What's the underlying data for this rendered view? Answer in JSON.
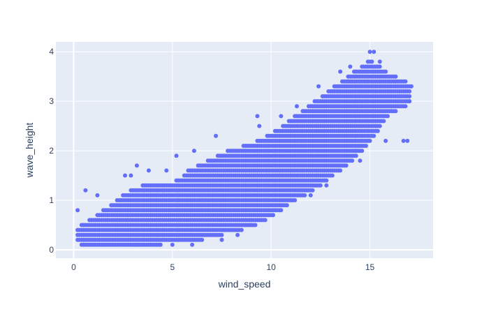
{
  "chart_data": {
    "type": "scatter",
    "title": "",
    "xlabel": "wind_speed",
    "ylabel": "wave_height",
    "xlim": [
      -0.9,
      18.2
    ],
    "ylim": [
      -0.17,
      4.2
    ],
    "xticks": [
      0,
      5,
      10,
      15
    ],
    "yticks": [
      0,
      1,
      2,
      3,
      4
    ],
    "grid": true,
    "legend": "none",
    "colors": {
      "marker": "#636efa",
      "plot_background": "#e5ecf6",
      "grid": "#ffffff",
      "text": "#2a3f5f"
    },
    "series": [
      {
        "wave_height_range_by_wind_speed": [
          {
            "wind_speed": 0.2,
            "wave_height_min": 0.2,
            "wave_height_max": 0.4
          },
          {
            "wind_speed": 0.5,
            "wave_height_min": 0.1,
            "wave_height_max": 0.5
          },
          {
            "wind_speed": 1,
            "wave_height_min": 0.1,
            "wave_height_max": 0.6
          },
          {
            "wind_speed": 2,
            "wave_height_min": 0.1,
            "wave_height_max": 0.9
          },
          {
            "wind_speed": 3,
            "wave_height_min": 0.1,
            "wave_height_max": 1.2
          },
          {
            "wind_speed": 4,
            "wave_height_min": 0.1,
            "wave_height_max": 1.3
          },
          {
            "wind_speed": 5,
            "wave_height_min": 0.2,
            "wave_height_max": 1.3
          },
          {
            "wind_speed": 6,
            "wave_height_min": 0.2,
            "wave_height_max": 1.6
          },
          {
            "wind_speed": 7,
            "wave_height_min": 0.3,
            "wave_height_max": 1.8
          },
          {
            "wind_speed": 8,
            "wave_height_min": 0.4,
            "wave_height_max": 2.0
          },
          {
            "wind_speed": 9,
            "wave_height_min": 0.5,
            "wave_height_max": 2.1
          },
          {
            "wind_speed": 10,
            "wave_height_min": 0.7,
            "wave_height_max": 2.3
          },
          {
            "wind_speed": 11,
            "wave_height_min": 1.0,
            "wave_height_max": 2.6
          },
          {
            "wind_speed": 12,
            "wave_height_min": 1.2,
            "wave_height_max": 2.9
          },
          {
            "wind_speed": 13,
            "wave_height_min": 1.5,
            "wave_height_max": 3.2
          },
          {
            "wind_speed": 14,
            "wave_height_min": 1.8,
            "wave_height_max": 3.5
          },
          {
            "wind_speed": 15,
            "wave_height_min": 2.2,
            "wave_height_max": 3.8
          },
          {
            "wind_speed": 16,
            "wave_height_min": 2.8,
            "wave_height_max": 3.5
          },
          {
            "wind_speed": 16.7,
            "wave_height_min": 2.9,
            "wave_height_max": 3.4
          },
          {
            "wind_speed": 17,
            "wave_height_min": 3.0,
            "wave_height_max": 3.3
          }
        ],
        "outliers": [
          {
            "x": 0.2,
            "y": 0.8
          },
          {
            "x": 0.6,
            "y": 1.2
          },
          {
            "x": 1.2,
            "y": 1.1
          },
          {
            "x": 2.6,
            "y": 1.5
          },
          {
            "x": 3.2,
            "y": 1.7
          },
          {
            "x": 2.9,
            "y": 1.5
          },
          {
            "x": 3.8,
            "y": 1.6
          },
          {
            "x": 4.7,
            "y": 1.6
          },
          {
            "x": 5.0,
            "y": 0.1
          },
          {
            "x": 5.2,
            "y": 1.9
          },
          {
            "x": 5.8,
            "y": 1.6
          },
          {
            "x": 6.0,
            "y": 0.1
          },
          {
            "x": 6.1,
            "y": 2.0
          },
          {
            "x": 7.2,
            "y": 2.3
          },
          {
            "x": 7.5,
            "y": 0.2
          },
          {
            "x": 8.3,
            "y": 0.3
          },
          {
            "x": 9.4,
            "y": 2.5
          },
          {
            "x": 9.3,
            "y": 2.7
          },
          {
            "x": 10.5,
            "y": 2.7
          },
          {
            "x": 11.3,
            "y": 2.9
          },
          {
            "x": 12.0,
            "y": 1.1
          },
          {
            "x": 12.8,
            "y": 1.3
          },
          {
            "x": 12.4,
            "y": 3.3
          },
          {
            "x": 13.5,
            "y": 3.6
          },
          {
            "x": 14.0,
            "y": 3.7
          },
          {
            "x": 14.3,
            "y": 2.0
          },
          {
            "x": 14.5,
            "y": 1.8
          },
          {
            "x": 15.0,
            "y": 4.0
          },
          {
            "x": 15.2,
            "y": 4.0
          },
          {
            "x": 15.5,
            "y": 3.8
          },
          {
            "x": 15.8,
            "y": 2.2
          },
          {
            "x": 16.3,
            "y": 3.5
          },
          {
            "x": 16.5,
            "y": 3.1
          },
          {
            "x": 16.7,
            "y": 2.2
          },
          {
            "x": 16.9,
            "y": 2.2
          },
          {
            "x": 17.0,
            "y": 3.0
          },
          {
            "x": 17.1,
            "y": 3.3
          }
        ]
      }
    ]
  }
}
